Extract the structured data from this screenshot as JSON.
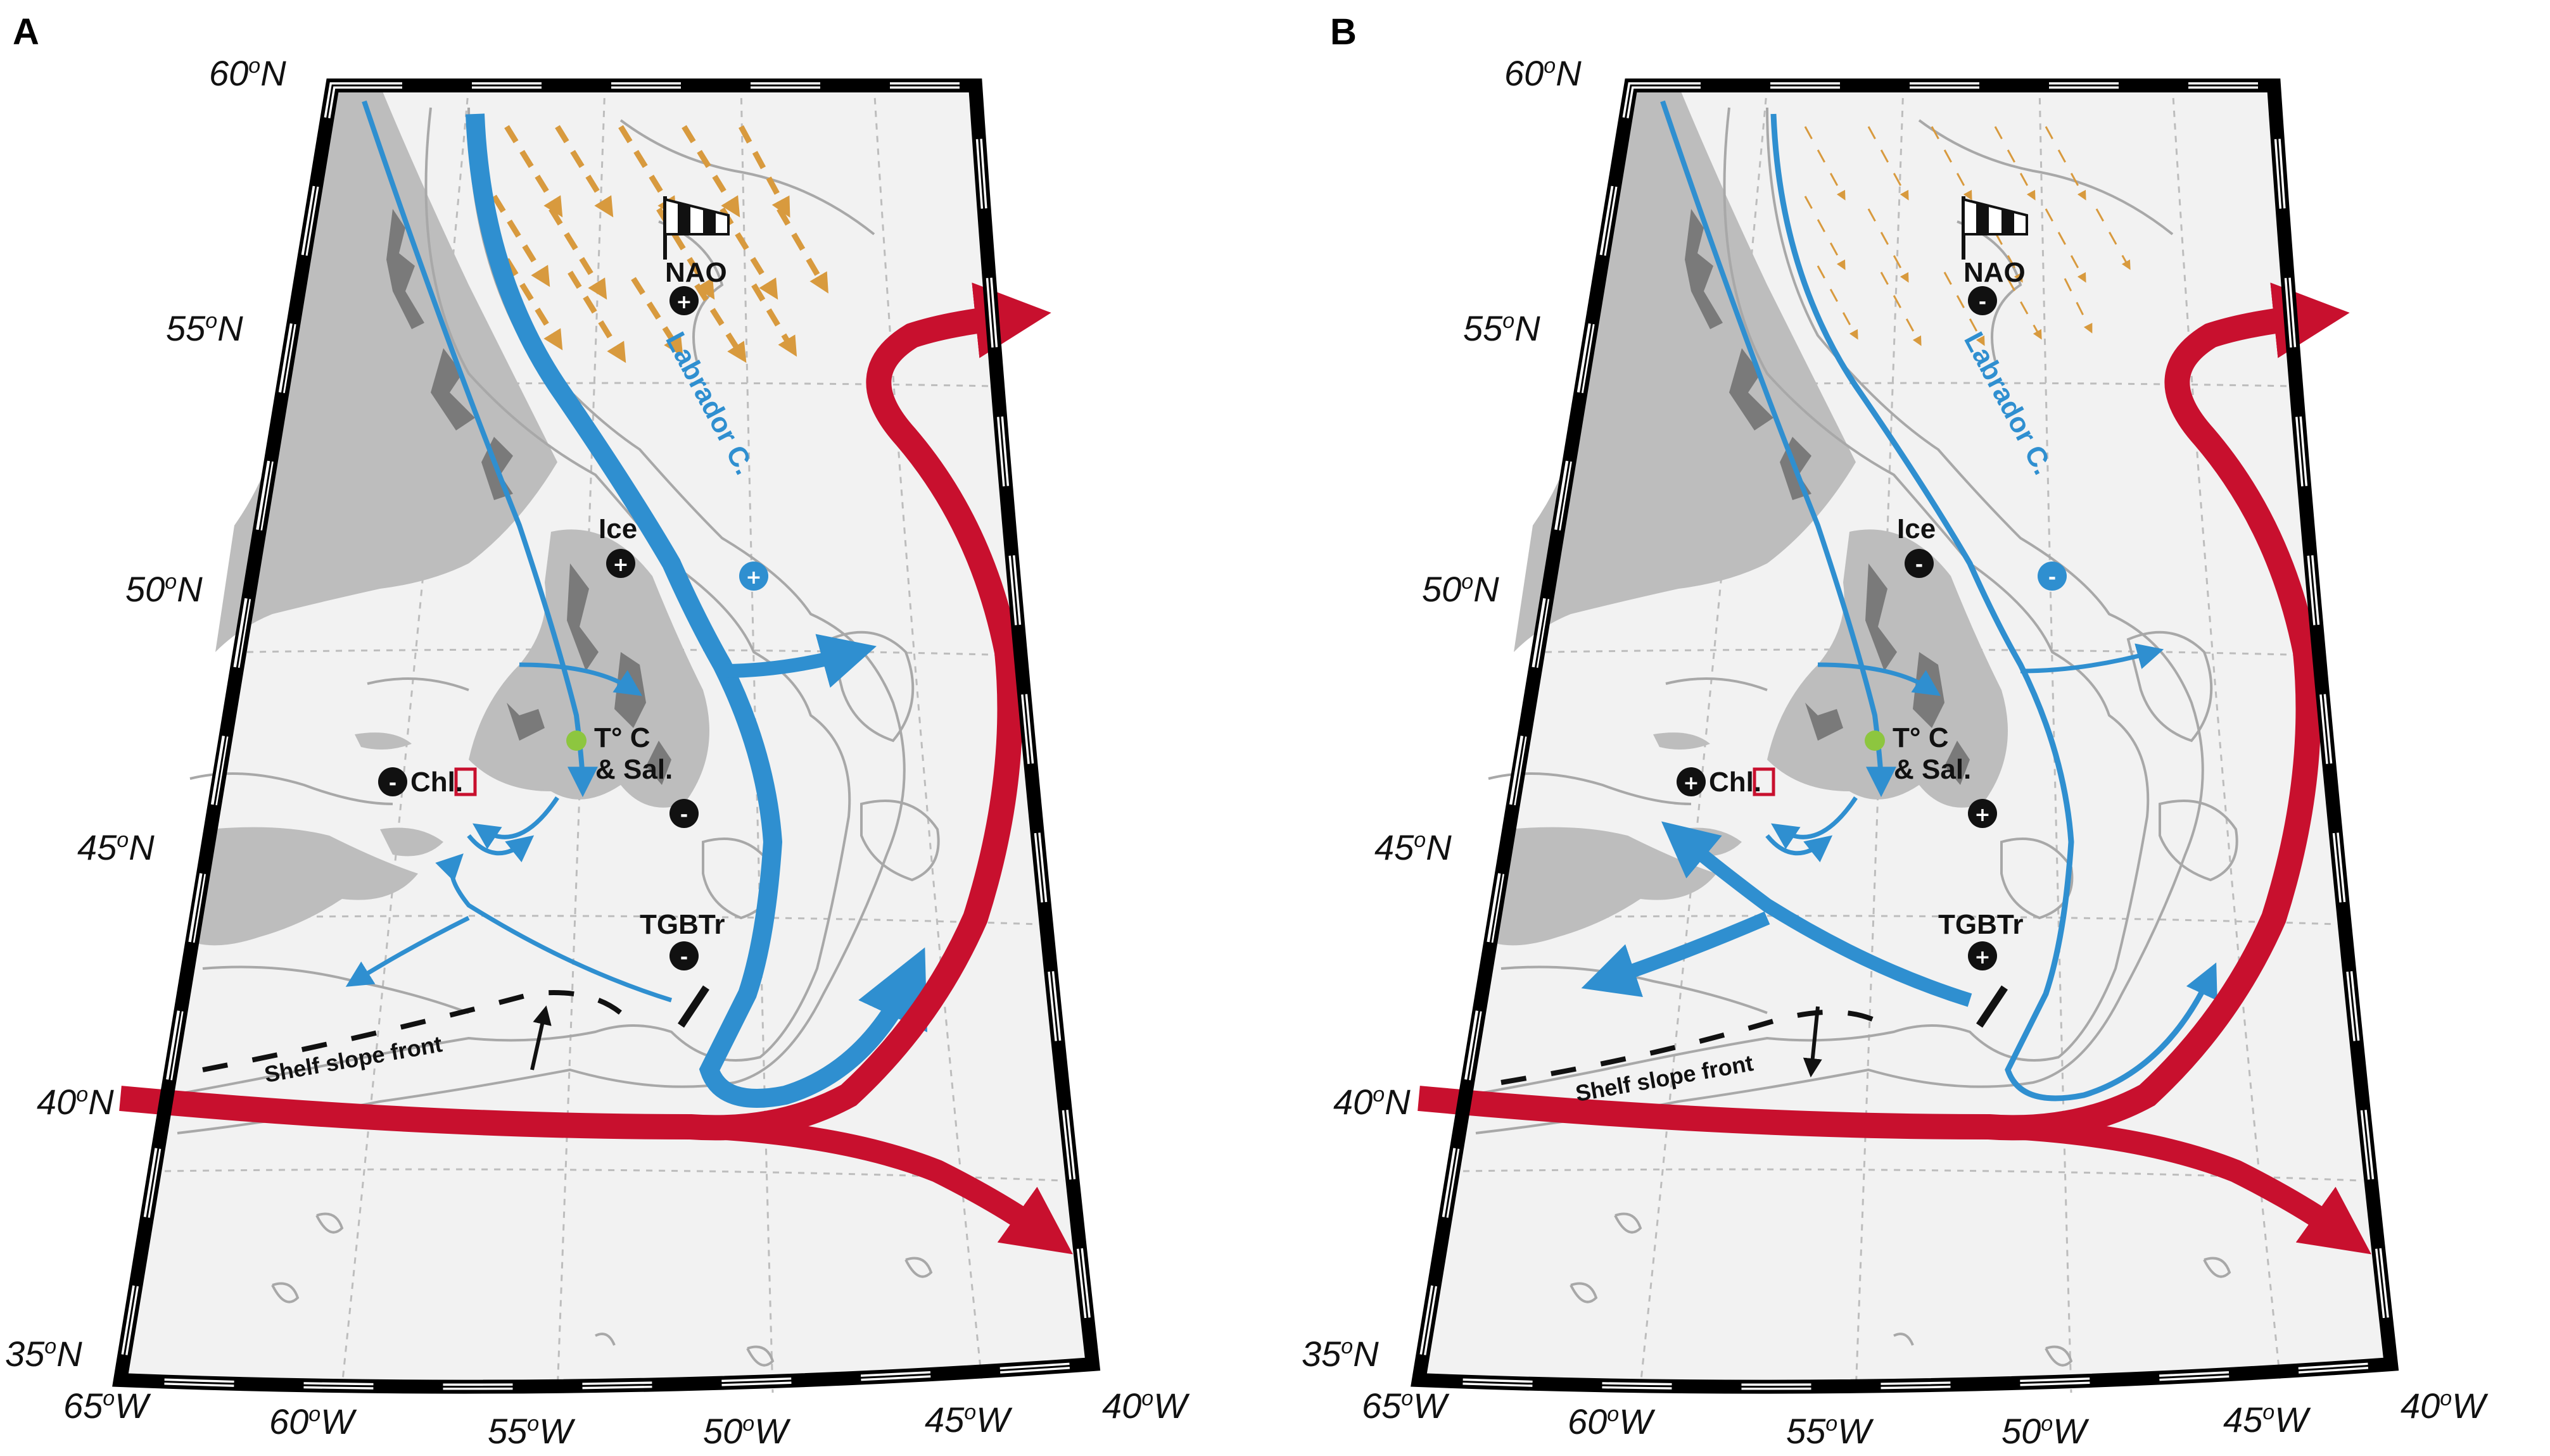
{
  "panels": [
    {
      "id": "A",
      "label": "A",
      "lat_labels": [
        "60",
        "55",
        "50",
        "45",
        "40",
        "35"
      ],
      "lat_suffix": "N",
      "lon_labels": [
        "65",
        "60",
        "55",
        "50",
        "45",
        "40"
      ],
      "lon_suffix": "W",
      "nao": {
        "label": "NAO",
        "sign": "+"
      },
      "ice": {
        "label": "Ice",
        "sign": "+"
      },
      "labrador": {
        "label": "Labrador C.",
        "sign": "+"
      },
      "temp_sal": {
        "line1": "T° C",
        "line2": "& Sal.",
        "sign": "-"
      },
      "chl": {
        "label": "Chl.",
        "sign": "-"
      },
      "tgbtr": {
        "label": "TGBTr",
        "sign": "-"
      },
      "front": {
        "label": "Shelf slope front",
        "arrow": "north"
      },
      "wind_strength": "strong",
      "labrador_strength": "strong",
      "shelf_flow_strength": "weak"
    },
    {
      "id": "B",
      "label": "B",
      "lat_labels": [
        "60",
        "55",
        "50",
        "45",
        "40",
        "35"
      ],
      "lat_suffix": "N",
      "lon_labels": [
        "65",
        "60",
        "55",
        "50",
        "45",
        "40"
      ],
      "lon_suffix": "W",
      "nao": {
        "label": "NAO",
        "sign": "-"
      },
      "ice": {
        "label": "Ice",
        "sign": "-"
      },
      "labrador": {
        "label": "Labrador C.",
        "sign": "-"
      },
      "temp_sal": {
        "line1": "T° C",
        "line2": "& Sal.",
        "sign": "+"
      },
      "chl": {
        "label": "Chl.",
        "sign": "+"
      },
      "tgbtr": {
        "label": "TGBTr",
        "sign": "+"
      },
      "front": {
        "label": "Shelf slope front",
        "arrow": "south"
      },
      "wind_strength": "weak",
      "labrador_strength": "weak",
      "shelf_flow_strength": "strong"
    }
  ],
  "colors": {
    "land": "#bdbdbd",
    "ocean": "#f2f2f2",
    "labrador_current": "#2f8fd0",
    "gulf_stream": "#c8102e",
    "wind": "#d89a3e",
    "station": "#8dc63f",
    "box": "#c8102e",
    "bathymetry": "#a8a8a8"
  }
}
